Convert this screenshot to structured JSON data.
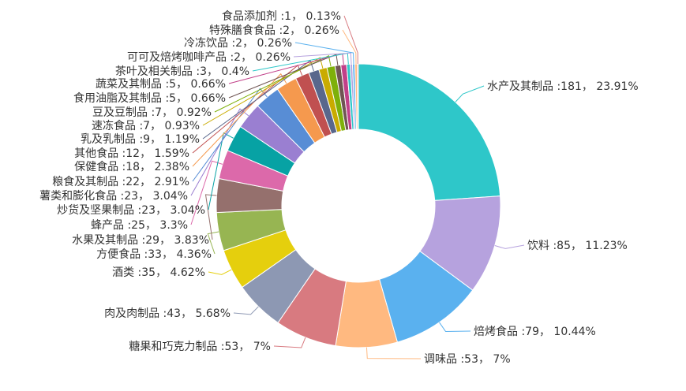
{
  "chart_data": {
    "type": "pie",
    "variant": "donut",
    "legend": "none",
    "slices": [
      {
        "name": "水产及其制品",
        "value": 181,
        "percent": "23.91%",
        "label": "水产及其制品 :181， 23.91%",
        "color": "#2ec7c9"
      },
      {
        "name": "饮料",
        "value": 85,
        "percent": "11.23%",
        "label": "饮料 :85， 11.23%",
        "color": "#b6a2de"
      },
      {
        "name": "焙烤食品",
        "value": 79,
        "percent": "10.44%",
        "label": "焙烤食品 :79， 10.44%",
        "color": "#5ab1ef"
      },
      {
        "name": "调味品",
        "value": 53,
        "percent": "7%",
        "label": "调味品 :53， 7%",
        "color": "#ffb980"
      },
      {
        "name": "糖果和巧克力制品",
        "value": 53,
        "percent": "7%",
        "label": "糖果和巧克力制品 :53， 7%",
        "color": "#d87a80"
      },
      {
        "name": "肉及肉制品",
        "value": 43,
        "percent": "5.68%",
        "label": "肉及肉制品 :43， 5.68%",
        "color": "#8d98b3"
      },
      {
        "name": "酒类",
        "value": 35,
        "percent": "4.62%",
        "label": "酒类 :35， 4.62%",
        "color": "#e5cf0d"
      },
      {
        "name": "方便食品",
        "value": 33,
        "percent": "4.36%",
        "label": "方便食品 :33， 4.36%",
        "color": "#97b552"
      },
      {
        "name": "水果及其制品",
        "value": 29,
        "percent": "3.83%",
        "label": "水果及其制品 :29， 3.83%",
        "color": "#95706d"
      },
      {
        "name": "蜂产品",
        "value": 25,
        "percent": "3.3%",
        "label": "蜂产品 :25， 3.3%",
        "color": "#dc69aa"
      },
      {
        "name": "炒货及坚果制品",
        "value": 23,
        "percent": "3.04%",
        "label": "炒货及坚果制品 :23， 3.04%",
        "color": "#07a2a4"
      },
      {
        "name": "薯类和膨化食品",
        "value": 23,
        "percent": "3.04%",
        "label": "薯类和膨化食品 :23， 3.04%",
        "color": "#9a7fd1"
      },
      {
        "name": "粮食及其制品",
        "value": 22,
        "percent": "2.91%",
        "label": "粮食及其制品 :22， 2.91%",
        "color": "#588dd5"
      },
      {
        "name": "保健食品",
        "value": 18,
        "percent": "2.38%",
        "label": "保健食品 :18， 2.38%",
        "color": "#f5994e"
      },
      {
        "name": "其他食品",
        "value": 12,
        "percent": "1.59%",
        "label": "其他食品 :12， 1.59%",
        "color": "#c05050"
      },
      {
        "name": "乳及乳制品",
        "value": 9,
        "percent": "1.19%",
        "label": "乳及乳制品 :9， 1.19%",
        "color": "#59678c"
      },
      {
        "name": "速冻食品",
        "value": 7,
        "percent": "0.93%",
        "label": "速冻食品 :7， 0.93%",
        "color": "#c9ab00"
      },
      {
        "name": "豆及豆制品",
        "value": 7,
        "percent": "0.92%",
        "label": "豆及豆制品 :7， 0.92%",
        "color": "#7eb00a"
      },
      {
        "name": "食用油脂及其制品",
        "value": 5,
        "percent": "0.66%",
        "label": "食用油脂及其制品 :5， 0.66%",
        "color": "#6f5553"
      },
      {
        "name": "蔬菜及其制品",
        "value": 5,
        "percent": "0.66%",
        "label": "蔬菜及其制品 :5， 0.66%",
        "color": "#c14089"
      },
      {
        "name": "茶叶及相关制品",
        "value": 3,
        "percent": "0.4%",
        "label": "茶叶及相关制品 :3， 0.4%",
        "color": "#2ec7c9"
      },
      {
        "name": "可可及焙烤咖啡产品",
        "value": 2,
        "percent": "0.26%",
        "label": "可可及焙烤咖啡产品 :2， 0.26%",
        "color": "#b6a2de"
      },
      {
        "name": "冷冻饮品",
        "value": 2,
        "percent": "0.26%",
        "label": "冷冻饮品 :2， 0.26%",
        "color": "#5ab1ef"
      },
      {
        "name": "特殊膳食食品",
        "value": 2,
        "percent": "0.26%",
        "label": "特殊膳食食品 :2， 0.26%",
        "color": "#ffb980"
      },
      {
        "name": "食品添加剂",
        "value": 1,
        "percent": "0.13%",
        "label": "食品添加剂 :1， 0.13%",
        "color": "#d87a80"
      }
    ]
  }
}
